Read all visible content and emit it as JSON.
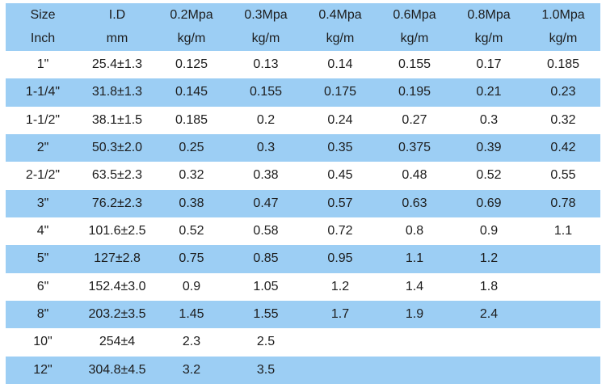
{
  "colors": {
    "band_blue": "#9CCEF4",
    "background": "#ffffff",
    "text": "#1c1c1c"
  },
  "chart_data": {
    "type": "table",
    "header_row_1": [
      "Size",
      "I.D",
      "0.2Mpa",
      "0.3Mpa",
      "0.4Mpa",
      "0.6Mpa",
      "0.8Mpa",
      "1.0Mpa"
    ],
    "header_row_2": [
      "Inch",
      "mm",
      "kg/m",
      "kg/m",
      "kg/m",
      "kg/m",
      "kg/m",
      "kg/m"
    ],
    "rows": [
      [
        "1\"",
        "25.4±1.3",
        "0.125",
        "0.13",
        "0.14",
        "0.155",
        "0.17",
        "0.185"
      ],
      [
        "1-1/4\"",
        "31.8±1.3",
        "0.145",
        "0.155",
        "0.175",
        "0.195",
        "0.21",
        "0.23"
      ],
      [
        "1-1/2\"",
        "38.1±1.5",
        "0.185",
        "0.2",
        "0.24",
        "0.27",
        "0.3",
        "0.32"
      ],
      [
        "2\"",
        "50.3±2.0",
        "0.25",
        "0.3",
        "0.35",
        "0.375",
        "0.39",
        "0.42"
      ],
      [
        "2-1/2\"",
        "63.5±2.3",
        "0.32",
        "0.38",
        "0.45",
        "0.48",
        "0.52",
        "0.55"
      ],
      [
        "3\"",
        "76.2±2.3",
        "0.38",
        "0.47",
        "0.57",
        "0.63",
        "0.69",
        "0.78"
      ],
      [
        "4\"",
        "101.6±2.5",
        "0.52",
        "0.58",
        "0.72",
        "0.8",
        "0.9",
        "1.1"
      ],
      [
        "5\"",
        "127±2.8",
        "0.75",
        "0.85",
        "0.95",
        "1.1",
        "1.2",
        ""
      ],
      [
        "6\"",
        "152.4±3.0",
        "0.9",
        "1.05",
        "1.2",
        "1.4",
        "1.8",
        ""
      ],
      [
        "8\"",
        "203.2±3.5",
        "1.45",
        "1.55",
        "1.7",
        "1.9",
        "2.4",
        ""
      ],
      [
        "10\"",
        "254±4",
        "2.3",
        "2.5",
        "",
        "",
        "",
        ""
      ],
      [
        "12\"",
        "304.8±4.5",
        "3.2",
        "3.5",
        "",
        "",
        "",
        ""
      ]
    ],
    "layout": {
      "zebra": true,
      "first_data_row": "white",
      "band_color": "#9CCEF4",
      "columns_equal_width": true
    }
  }
}
